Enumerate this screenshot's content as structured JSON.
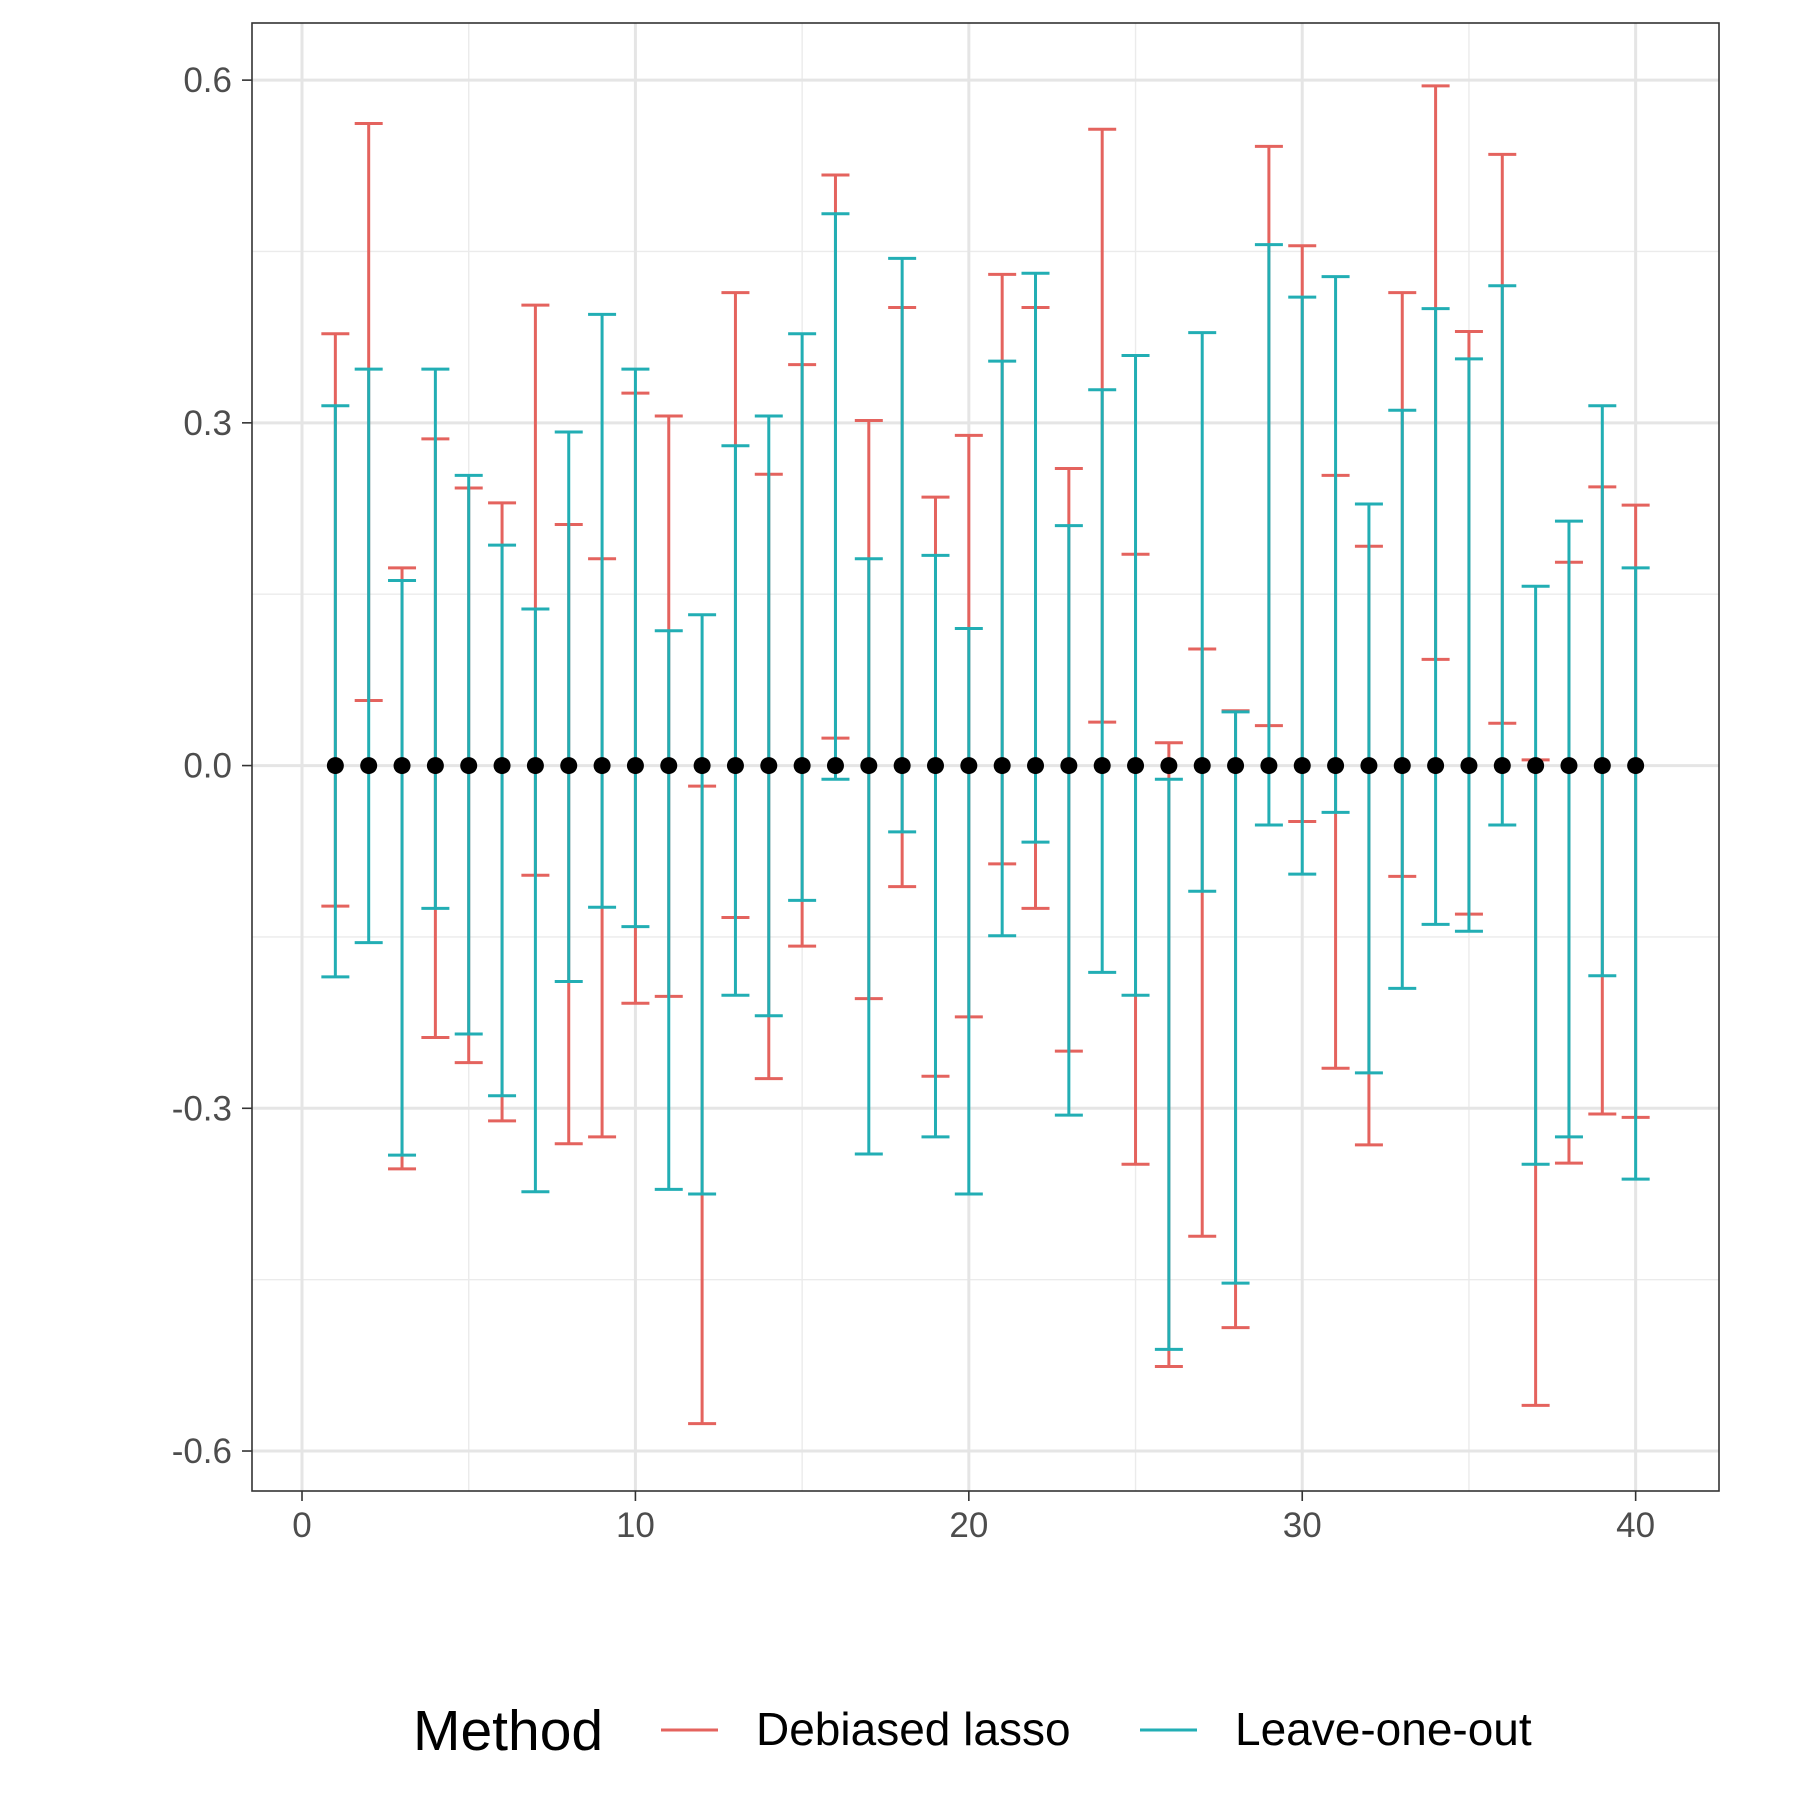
{
  "chart_data": {
    "type": "errorbar",
    "title": "",
    "xlabel": "",
    "ylabel": "",
    "xlim": [
      -1.5,
      42.5
    ],
    "ylim": [
      -0.635,
      0.65
    ],
    "x_ticks": [
      0,
      10,
      20,
      30,
      40
    ],
    "x_tick_labels": [
      "0",
      "10",
      "20",
      "30",
      "40"
    ],
    "y_ticks": [
      -0.6,
      -0.3,
      0.0,
      0.3,
      0.6
    ],
    "y_tick_labels": [
      "-0.6",
      "-0.3",
      "0.0",
      "0.3",
      "0.6"
    ],
    "y_minor_ticks": [
      -0.45,
      -0.15,
      0.15,
      0.45
    ],
    "x_minor_ticks": [
      5,
      15,
      25,
      35
    ],
    "grid": true,
    "legend": {
      "title": "Method",
      "position": "bottom",
      "entries": [
        "Debiased lasso",
        "Leave-one-out"
      ]
    },
    "point_estimates": {
      "x": [
        1,
        2,
        3,
        4,
        5,
        6,
        7,
        8,
        9,
        10,
        11,
        12,
        13,
        14,
        15,
        16,
        17,
        18,
        19,
        20,
        21,
        22,
        23,
        24,
        25,
        26,
        27,
        28,
        29,
        30,
        31,
        32,
        33,
        34,
        35,
        36,
        37,
        38,
        39,
        40
      ],
      "y": [
        0,
        0,
        0,
        0,
        0,
        0,
        0,
        0,
        0,
        0,
        0,
        0,
        0,
        0,
        0,
        0,
        0,
        0,
        0,
        0,
        0,
        0,
        0,
        0,
        0,
        0,
        0,
        0,
        0,
        0,
        0,
        0,
        0,
        0,
        0,
        0,
        0,
        0,
        0,
        0
      ],
      "color": "#000000"
    },
    "series": [
      {
        "name": "Debiased lasso",
        "color": "#E4635E",
        "x": [
          1,
          2,
          3,
          4,
          5,
          6,
          7,
          8,
          9,
          10,
          11,
          12,
          13,
          14,
          15,
          16,
          17,
          18,
          19,
          20,
          21,
          22,
          23,
          24,
          25,
          26,
          27,
          28,
          29,
          30,
          31,
          32,
          33,
          34,
          35,
          36,
          37,
          38,
          39,
          40
        ],
        "lower": [
          -0.123,
          0.057,
          -0.353,
          -0.238,
          -0.26,
          -0.311,
          -0.096,
          -0.331,
          -0.325,
          -0.208,
          -0.202,
          -0.576,
          -0.133,
          -0.274,
          -0.158,
          0.024,
          -0.204,
          -0.106,
          -0.272,
          -0.22,
          -0.086,
          -0.125,
          -0.25,
          0.038,
          -0.349,
          -0.526,
          -0.412,
          -0.492,
          0.035,
          -0.049,
          -0.265,
          -0.332,
          -0.097,
          0.093,
          -0.13,
          0.037,
          -0.56,
          -0.348,
          -0.305,
          -0.308
        ],
        "upper": [
          0.378,
          0.562,
          0.173,
          0.286,
          0.243,
          0.23,
          0.403,
          0.211,
          0.181,
          0.326,
          0.306,
          -0.018,
          0.414,
          0.255,
          0.351,
          0.517,
          0.302,
          0.401,
          0.235,
          0.289,
          0.43,
          0.401,
          0.26,
          0.557,
          0.185,
          0.02,
          0.102,
          0.048,
          0.542,
          0.455,
          0.254,
          0.192,
          0.414,
          0.595,
          0.38,
          0.535,
          0.005,
          0.178,
          0.244,
          0.228
        ]
      },
      {
        "name": "Leave-one-out",
        "color": "#22AEB4",
        "x": [
          1,
          2,
          3,
          4,
          5,
          6,
          7,
          8,
          9,
          10,
          11,
          12,
          13,
          14,
          15,
          16,
          17,
          18,
          19,
          20,
          21,
          22,
          23,
          24,
          25,
          26,
          27,
          28,
          29,
          30,
          31,
          32,
          33,
          34,
          35,
          36,
          37,
          38,
          39,
          40
        ],
        "lower": [
          -0.185,
          -0.155,
          -0.341,
          -0.125,
          -0.235,
          -0.289,
          -0.373,
          -0.189,
          -0.124,
          -0.141,
          -0.371,
          -0.375,
          -0.201,
          -0.219,
          -0.118,
          -0.012,
          -0.34,
          -0.058,
          -0.325,
          -0.375,
          -0.149,
          -0.067,
          -0.306,
          -0.181,
          -0.201,
          -0.511,
          -0.11,
          -0.453,
          -0.052,
          -0.095,
          -0.041,
          -0.269,
          -0.195,
          -0.139,
          -0.145,
          -0.052,
          -0.349,
          -0.325,
          -0.184,
          -0.362
        ],
        "upper": [
          0.315,
          0.347,
          0.162,
          0.347,
          0.254,
          0.193,
          0.137,
          0.292,
          0.395,
          0.347,
          0.118,
          0.132,
          0.28,
          0.306,
          0.378,
          0.483,
          0.181,
          0.444,
          0.184,
          0.12,
          0.354,
          0.431,
          0.21,
          0.329,
          0.359,
          -0.012,
          0.379,
          0.047,
          0.456,
          0.41,
          0.428,
          0.229,
          0.311,
          0.4,
          0.356,
          0.42,
          0.157,
          0.214,
          0.315,
          0.173
        ]
      }
    ]
  }
}
